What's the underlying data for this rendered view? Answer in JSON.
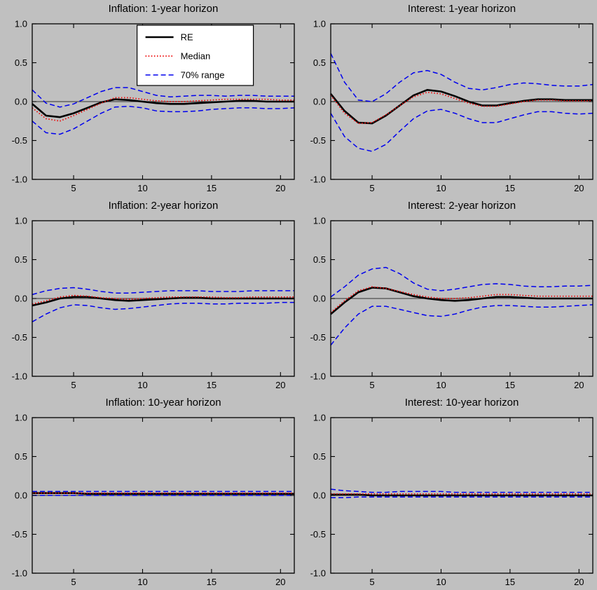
{
  "figure": {
    "background": "#c0c0c0",
    "axes_background": "#c0c0c0",
    "box_color": "#000000"
  },
  "legend": {
    "position": "top-center-of-first-subplot",
    "items": [
      {
        "label": "RE",
        "color": "#000000",
        "style": "solid",
        "width": 2.6
      },
      {
        "label": "Median",
        "color": "#ee0000",
        "style": "dotted",
        "width": 1.7
      },
      {
        "label": "70% range",
        "color": "#0000ee",
        "style": "dashed",
        "width": 1.5
      }
    ]
  },
  "chart_data": [
    {
      "type": "line",
      "title": "Inflation: 1-year horizon",
      "xlim": [
        2,
        21
      ],
      "ylim": [
        -1.0,
        1.0
      ],
      "xticks": [
        5,
        10,
        15,
        20
      ],
      "yticks": [
        -1.0,
        -0.5,
        0.0,
        0.5,
        1.0
      ],
      "grid": false,
      "legend": true,
      "x": [
        2,
        3,
        4,
        5,
        6,
        7,
        8,
        9,
        10,
        11,
        12,
        13,
        14,
        15,
        16,
        17,
        18,
        19,
        20,
        21
      ],
      "series": [
        {
          "name": "RE",
          "color": "#000000",
          "style": "solid",
          "width": 2.6,
          "values": [
            -0.03,
            -0.18,
            -0.2,
            -0.15,
            -0.08,
            -0.01,
            0.03,
            0.02,
            0.0,
            -0.02,
            -0.03,
            -0.03,
            -0.02,
            -0.01,
            0.0,
            0.01,
            0.01,
            0.0,
            0.0,
            0.0
          ]
        },
        {
          "name": "Median",
          "color": "#ee0000",
          "style": "dotted",
          "width": 1.7,
          "values": [
            -0.08,
            -0.22,
            -0.25,
            -0.18,
            -0.1,
            -0.02,
            0.05,
            0.05,
            0.03,
            0.01,
            0.0,
            0.0,
            0.01,
            0.02,
            0.03,
            0.03,
            0.03,
            0.03,
            0.02,
            0.02
          ]
        },
        {
          "name": "70% range upper",
          "color": "#0000ee",
          "style": "dashed",
          "width": 1.5,
          "values": [
            0.15,
            -0.02,
            -0.07,
            -0.03,
            0.05,
            0.13,
            0.18,
            0.18,
            0.13,
            0.08,
            0.06,
            0.07,
            0.08,
            0.08,
            0.07,
            0.08,
            0.08,
            0.07,
            0.07,
            0.07
          ]
        },
        {
          "name": "70% range lower",
          "color": "#0000ee",
          "style": "dashed",
          "width": 1.5,
          "values": [
            -0.25,
            -0.4,
            -0.42,
            -0.35,
            -0.25,
            -0.15,
            -0.07,
            -0.06,
            -0.08,
            -0.12,
            -0.13,
            -0.13,
            -0.12,
            -0.1,
            -0.09,
            -0.08,
            -0.08,
            -0.09,
            -0.09,
            -0.08
          ]
        }
      ]
    },
    {
      "type": "line",
      "title": "Interest: 1-year horizon",
      "xlim": [
        2,
        21
      ],
      "ylim": [
        -1.0,
        1.0
      ],
      "xticks": [
        5,
        10,
        15,
        20
      ],
      "yticks": [
        -1.0,
        -0.5,
        0.0,
        0.5,
        1.0
      ],
      "grid": false,
      "legend": false,
      "x": [
        2,
        3,
        4,
        5,
        6,
        7,
        8,
        9,
        10,
        11,
        12,
        13,
        14,
        15,
        16,
        17,
        18,
        19,
        20,
        21
      ],
      "series": [
        {
          "name": "RE",
          "color": "#000000",
          "style": "solid",
          "width": 2.6,
          "values": [
            0.1,
            -0.12,
            -0.27,
            -0.28,
            -0.18,
            -0.05,
            0.08,
            0.15,
            0.13,
            0.07,
            0.0,
            -0.05,
            -0.05,
            -0.02,
            0.01,
            0.03,
            0.03,
            0.02,
            0.02,
            0.02
          ]
        },
        {
          "name": "Median",
          "color": "#ee0000",
          "style": "dotted",
          "width": 1.7,
          "values": [
            0.08,
            -0.15,
            -0.28,
            -0.27,
            -0.17,
            -0.05,
            0.06,
            0.12,
            0.1,
            0.04,
            -0.02,
            -0.06,
            -0.06,
            -0.03,
            0.0,
            0.02,
            0.02,
            0.01,
            0.01,
            0.01
          ]
        },
        {
          "name": "70% range upper",
          "color": "#0000ee",
          "style": "dashed",
          "width": 1.5,
          "values": [
            0.62,
            0.25,
            0.02,
            0.0,
            0.1,
            0.25,
            0.37,
            0.4,
            0.35,
            0.25,
            0.17,
            0.15,
            0.18,
            0.22,
            0.24,
            0.23,
            0.21,
            0.2,
            0.2,
            0.22
          ]
        },
        {
          "name": "70% range lower",
          "color": "#0000ee",
          "style": "dashed",
          "width": 1.5,
          "values": [
            -0.15,
            -0.45,
            -0.6,
            -0.64,
            -0.55,
            -0.38,
            -0.22,
            -0.12,
            -0.1,
            -0.15,
            -0.22,
            -0.27,
            -0.27,
            -0.22,
            -0.17,
            -0.13,
            -0.13,
            -0.15,
            -0.16,
            -0.15
          ]
        }
      ]
    },
    {
      "type": "line",
      "title": "Inflation: 2-year horizon",
      "xlim": [
        2,
        21
      ],
      "ylim": [
        -1.0,
        1.0
      ],
      "xticks": [
        5,
        10,
        15,
        20
      ],
      "yticks": [
        -1.0,
        -0.5,
        0.0,
        0.5,
        1.0
      ],
      "grid": false,
      "legend": false,
      "x": [
        2,
        3,
        4,
        5,
        6,
        7,
        8,
        9,
        10,
        11,
        12,
        13,
        14,
        15,
        16,
        17,
        18,
        19,
        20,
        21
      ],
      "series": [
        {
          "name": "RE",
          "color": "#000000",
          "style": "solid",
          "width": 2.6,
          "values": [
            -0.09,
            -0.05,
            0.0,
            0.02,
            0.02,
            0.0,
            -0.02,
            -0.03,
            -0.02,
            -0.01,
            0.0,
            0.01,
            0.01,
            0.0,
            0.0,
            0.0,
            0.0,
            0.0,
            0.0,
            0.0
          ]
        },
        {
          "name": "Median",
          "color": "#ee0000",
          "style": "dotted",
          "width": 1.7,
          "values": [
            -0.07,
            -0.03,
            0.02,
            0.04,
            0.03,
            0.01,
            0.0,
            -0.01,
            0.0,
            0.01,
            0.02,
            0.02,
            0.02,
            0.02,
            0.01,
            0.01,
            0.02,
            0.02,
            0.02,
            0.02
          ]
        },
        {
          "name": "70% range upper",
          "color": "#0000ee",
          "style": "dashed",
          "width": 1.5,
          "values": [
            0.05,
            0.1,
            0.13,
            0.14,
            0.12,
            0.09,
            0.07,
            0.07,
            0.08,
            0.09,
            0.1,
            0.1,
            0.1,
            0.09,
            0.09,
            0.09,
            0.1,
            0.1,
            0.1,
            0.1
          ]
        },
        {
          "name": "70% range lower",
          "color": "#0000ee",
          "style": "dashed",
          "width": 1.5,
          "values": [
            -0.3,
            -0.2,
            -0.12,
            -0.08,
            -0.09,
            -0.12,
            -0.14,
            -0.13,
            -0.11,
            -0.09,
            -0.07,
            -0.06,
            -0.06,
            -0.07,
            -0.07,
            -0.06,
            -0.06,
            -0.06,
            -0.05,
            -0.05
          ]
        }
      ]
    },
    {
      "type": "line",
      "title": "Interest: 2-year horizon",
      "xlim": [
        2,
        21
      ],
      "ylim": [
        -1.0,
        1.0
      ],
      "xticks": [
        5,
        10,
        15,
        20
      ],
      "yticks": [
        -1.0,
        -0.5,
        0.0,
        0.5,
        1.0
      ],
      "grid": false,
      "legend": false,
      "x": [
        2,
        3,
        4,
        5,
        6,
        7,
        8,
        9,
        10,
        11,
        12,
        13,
        14,
        15,
        16,
        17,
        18,
        19,
        20,
        21
      ],
      "series": [
        {
          "name": "RE",
          "color": "#000000",
          "style": "solid",
          "width": 2.6,
          "values": [
            -0.2,
            -0.05,
            0.08,
            0.14,
            0.13,
            0.08,
            0.03,
            0.0,
            -0.02,
            -0.03,
            -0.02,
            0.0,
            0.02,
            0.02,
            0.01,
            0.0,
            0.0,
            0.0,
            0.0,
            0.0
          ]
        },
        {
          "name": "Median",
          "color": "#ee0000",
          "style": "dotted",
          "width": 1.7,
          "values": [
            -0.18,
            -0.03,
            0.1,
            0.15,
            0.13,
            0.09,
            0.05,
            0.02,
            0.0,
            0.0,
            0.01,
            0.03,
            0.05,
            0.05,
            0.04,
            0.03,
            0.03,
            0.03,
            0.03,
            0.03
          ]
        },
        {
          "name": "70% range upper",
          "color": "#0000ee",
          "style": "dashed",
          "width": 1.5,
          "values": [
            0.02,
            0.15,
            0.3,
            0.38,
            0.4,
            0.32,
            0.2,
            0.12,
            0.1,
            0.12,
            0.15,
            0.18,
            0.19,
            0.18,
            0.16,
            0.15,
            0.15,
            0.16,
            0.16,
            0.17
          ]
        },
        {
          "name": "70% range lower",
          "color": "#0000ee",
          "style": "dashed",
          "width": 1.5,
          "values": [
            -0.6,
            -0.38,
            -0.2,
            -0.1,
            -0.1,
            -0.14,
            -0.18,
            -0.22,
            -0.23,
            -0.2,
            -0.15,
            -0.11,
            -0.09,
            -0.09,
            -0.1,
            -0.11,
            -0.11,
            -0.1,
            -0.09,
            -0.08
          ]
        }
      ]
    },
    {
      "type": "line",
      "title": "Inflation: 10-year horizon",
      "xlim": [
        2,
        21
      ],
      "ylim": [
        -1.0,
        1.0
      ],
      "xticks": [
        5,
        10,
        15,
        20
      ],
      "yticks": [
        -1.0,
        -0.5,
        0.0,
        0.5,
        1.0
      ],
      "grid": false,
      "legend": false,
      "x": [
        2,
        3,
        4,
        5,
        6,
        7,
        8,
        9,
        10,
        11,
        12,
        13,
        14,
        15,
        16,
        17,
        18,
        19,
        20,
        21
      ],
      "series": [
        {
          "name": "RE",
          "color": "#000000",
          "style": "solid",
          "width": 2.6,
          "values": [
            0.03,
            0.03,
            0.03,
            0.03,
            0.02,
            0.02,
            0.02,
            0.02,
            0.02,
            0.02,
            0.02,
            0.02,
            0.02,
            0.02,
            0.02,
            0.02,
            0.02,
            0.02,
            0.02,
            0.02
          ]
        },
        {
          "name": "Median",
          "color": "#ee0000",
          "style": "dotted",
          "width": 1.7,
          "values": [
            0.03,
            0.03,
            0.03,
            0.03,
            0.03,
            0.03,
            0.03,
            0.03,
            0.03,
            0.03,
            0.03,
            0.03,
            0.03,
            0.03,
            0.03,
            0.03,
            0.03,
            0.03,
            0.03,
            0.03
          ]
        },
        {
          "name": "70% range upper",
          "color": "#0000ee",
          "style": "dashed",
          "width": 1.5,
          "values": [
            0.05,
            0.05,
            0.05,
            0.05,
            0.05,
            0.05,
            0.05,
            0.05,
            0.05,
            0.05,
            0.05,
            0.05,
            0.05,
            0.05,
            0.05,
            0.05,
            0.05,
            0.05,
            0.05,
            0.05
          ]
        },
        {
          "name": "70% range lower",
          "color": "#0000ee",
          "style": "dashed",
          "width": 1.5,
          "values": [
            0.0,
            0.0,
            0.0,
            0.0,
            0.0,
            0.0,
            0.0,
            0.0,
            0.0,
            0.0,
            0.0,
            0.0,
            0.0,
            0.0,
            0.0,
            0.0,
            0.0,
            0.0,
            0.0,
            0.0
          ]
        }
      ]
    },
    {
      "type": "line",
      "title": "Interest: 10-year horizon",
      "xlim": [
        2,
        21
      ],
      "ylim": [
        -1.0,
        1.0
      ],
      "xticks": [
        5,
        10,
        15,
        20
      ],
      "yticks": [
        -1.0,
        -0.5,
        0.0,
        0.5,
        1.0
      ],
      "grid": false,
      "legend": false,
      "x": [
        2,
        3,
        4,
        5,
        6,
        7,
        8,
        9,
        10,
        11,
        12,
        13,
        14,
        15,
        16,
        17,
        18,
        19,
        20,
        21
      ],
      "series": [
        {
          "name": "RE",
          "color": "#000000",
          "style": "solid",
          "width": 2.6,
          "values": [
            0.01,
            0.01,
            0.01,
            0.0,
            0.0,
            0.0,
            0.0,
            0.0,
            0.0,
            0.0,
            0.0,
            0.0,
            0.0,
            0.0,
            0.0,
            0.0,
            0.0,
            0.0,
            0.0,
            0.0
          ]
        },
        {
          "name": "Median",
          "color": "#ee0000",
          "style": "dotted",
          "width": 1.7,
          "values": [
            0.02,
            0.02,
            0.02,
            0.02,
            0.02,
            0.02,
            0.02,
            0.02,
            0.02,
            0.02,
            0.02,
            0.02,
            0.02,
            0.02,
            0.02,
            0.02,
            0.02,
            0.02,
            0.02,
            0.02
          ]
        },
        {
          "name": "70% range upper",
          "color": "#0000ee",
          "style": "dashed",
          "width": 1.5,
          "values": [
            0.08,
            0.06,
            0.05,
            0.04,
            0.04,
            0.05,
            0.05,
            0.05,
            0.05,
            0.04,
            0.04,
            0.04,
            0.04,
            0.04,
            0.04,
            0.04,
            0.04,
            0.04,
            0.04,
            0.04
          ]
        },
        {
          "name": "70% range lower",
          "color": "#0000ee",
          "style": "dashed",
          "width": 1.5,
          "values": [
            -0.03,
            -0.03,
            -0.02,
            -0.02,
            -0.02,
            -0.02,
            -0.02,
            -0.02,
            -0.02,
            -0.02,
            -0.02,
            -0.02,
            -0.02,
            -0.02,
            -0.02,
            -0.02,
            -0.02,
            -0.02,
            -0.02,
            -0.02
          ]
        }
      ]
    }
  ]
}
